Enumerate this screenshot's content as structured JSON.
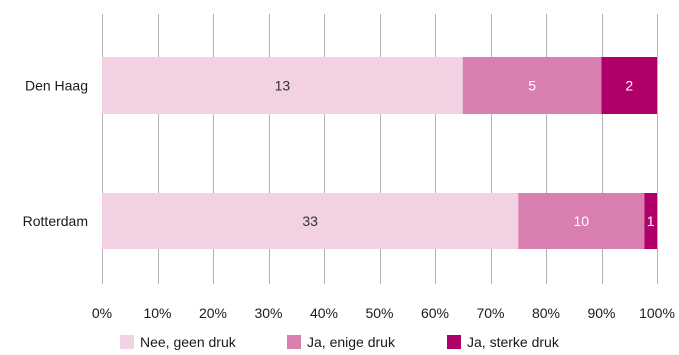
{
  "chart_data": {
    "type": "bar",
    "orientation": "horizontal",
    "stacked": true,
    "normalized_to_percent": true,
    "categories": [
      "Den Haag",
      "Rotterdam"
    ],
    "series": [
      {
        "name": "Nee, geen druk",
        "values": [
          13,
          33
        ],
        "color": "#f2d1e3",
        "label_color": "#333333"
      },
      {
        "name": "Ja, enige druk",
        "values": [
          5,
          10
        ],
        "color": "#d97fb0",
        "label_color": "#ffffff"
      },
      {
        "name": "Ja, sterke druk",
        "values": [
          2,
          1
        ],
        "color": "#b0006a",
        "label_color": "#ffffff"
      }
    ],
    "x_ticks": [
      "0%",
      "10%",
      "20%",
      "30%",
      "40%",
      "50%",
      "60%",
      "70%",
      "80%",
      "90%",
      "100%"
    ],
    "xlim": [
      0,
      100
    ],
    "grid": "vertical",
    "legend": "bottom",
    "grid_color": "#b3b3b3",
    "text_color": "#1a1a1a"
  }
}
